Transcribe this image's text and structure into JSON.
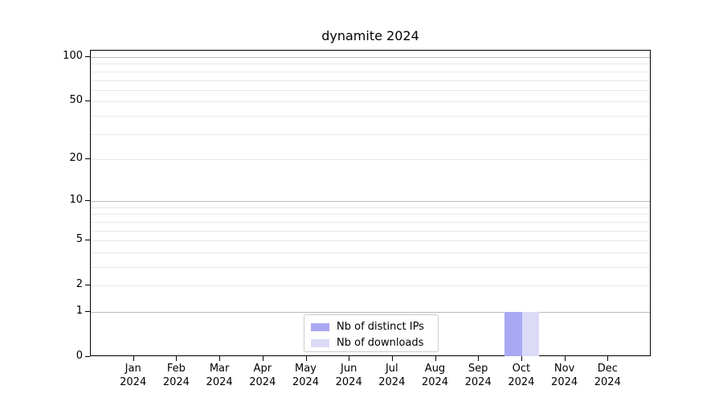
{
  "chart_data": {
    "type": "bar",
    "title": "dynamite 2024",
    "categories": [
      "Jan 2024",
      "Feb 2024",
      "Mar 2024",
      "Apr 2024",
      "May 2024",
      "Jun 2024",
      "Jul 2024",
      "Aug 2024",
      "Sep 2024",
      "Oct 2024",
      "Nov 2024",
      "Dec 2024"
    ],
    "series": [
      {
        "name": "Nb of distinct IPs",
        "color": "#a9a9f3",
        "values": [
          0,
          0,
          0,
          0,
          0,
          0,
          0,
          0,
          0,
          1,
          0,
          0
        ]
      },
      {
        "name": "Nb of downloads",
        "color": "#dbdbf7",
        "values": [
          0,
          0,
          0,
          0,
          0,
          0,
          0,
          0,
          0,
          1,
          0,
          0
        ]
      }
    ],
    "yscale": "log1p",
    "ytick_values": [
      0,
      1,
      2,
      5,
      10,
      20,
      50,
      100
    ],
    "major_gridlines": [
      1,
      10,
      100
    ],
    "minor_gridlines": [
      2,
      3,
      4,
      5,
      6,
      7,
      8,
      9,
      20,
      30,
      40,
      50,
      60,
      70,
      80,
      90
    ],
    "ylim": [
      0,
      110
    ],
    "xlabel": "",
    "ylabel": "",
    "grid": "horizontal",
    "legend_position": "lower-center"
  }
}
